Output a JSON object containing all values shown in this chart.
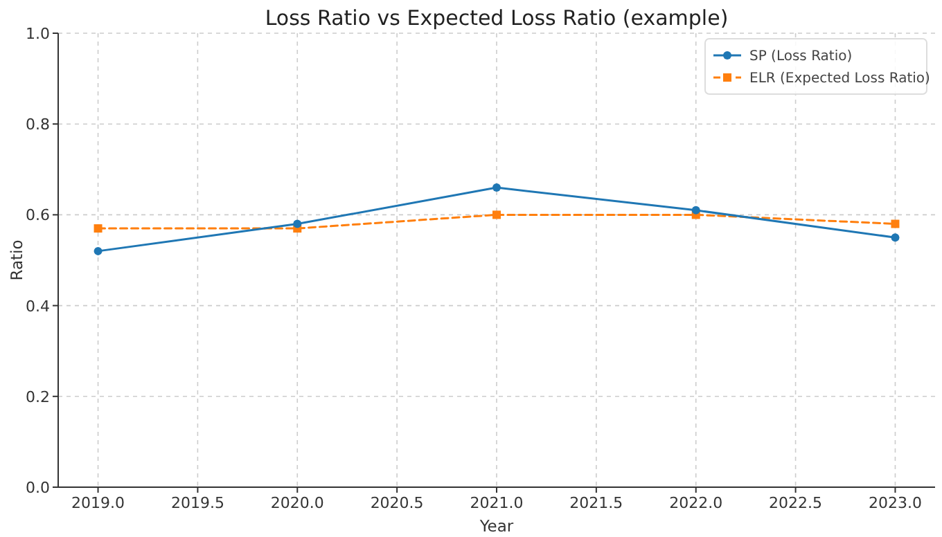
{
  "chart_data": {
    "type": "line",
    "title": "Loss Ratio vs Expected Loss Ratio (example)",
    "xlabel": "Year",
    "ylabel": "Ratio",
    "x": [
      2019,
      2020,
      2021,
      2022,
      2023
    ],
    "series": [
      {
        "name": "SP (Loss Ratio)",
        "color": "#1f77b4",
        "values": [
          0.52,
          0.58,
          0.66,
          0.61,
          0.55
        ],
        "marker": "circle",
        "line_style": "solid"
      },
      {
        "name": "ELR (Expected Loss Ratio)",
        "color": "#ff7f0e",
        "values": [
          0.57,
          0.57,
          0.6,
          0.6,
          0.58
        ],
        "marker": "square",
        "line_style": "dashed"
      }
    ],
    "xlim": [
      2018.8,
      2023.2
    ],
    "xticks": [
      {
        "value": 2019,
        "label": "2019.0"
      },
      {
        "value": 2019.5,
        "label": "2019.5"
      },
      {
        "value": 2020,
        "label": "2020.0"
      },
      {
        "value": 2020.5,
        "label": "2020.5"
      },
      {
        "value": 2021,
        "label": "2021.0"
      },
      {
        "value": 2021.5,
        "label": "2021.5"
      },
      {
        "value": 2022,
        "label": "2022.0"
      },
      {
        "value": 2022.5,
        "label": "2022.5"
      },
      {
        "value": 2023,
        "label": "2023.0"
      }
    ],
    "ylim": [
      0,
      1
    ],
    "yticks": [
      {
        "value": 0,
        "label": "0.0"
      },
      0.2,
      0.4,
      0.6,
      0.8,
      {
        "value": 1,
        "label": "1.0"
      }
    ],
    "grid": true,
    "legend": "top right"
  }
}
